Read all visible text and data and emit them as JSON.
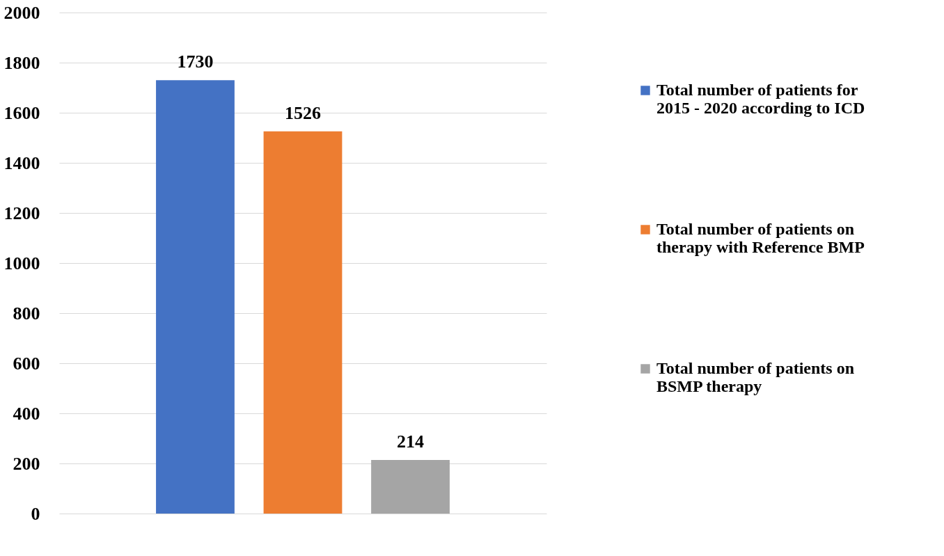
{
  "chart_data": {
    "type": "bar",
    "categories": [
      null
    ],
    "series": [
      {
        "name": "Total number of patients for 2015 - 2020 according to ICD",
        "color": "#4472c4",
        "values": [
          1730
        ]
      },
      {
        "name": "Total number of patients on therapy with Reference BMP",
        "color": "#ed7d31",
        "values": [
          1526
        ]
      },
      {
        "name": "Total number of patients on BSMP therapy",
        "color": "#a5a5a5",
        "values": [
          214
        ]
      }
    ],
    "ylim": [
      0,
      2000
    ],
    "yticks": [
      0,
      200,
      400,
      600,
      800,
      1000,
      1200,
      1400,
      1600,
      1800,
      2000
    ],
    "grid": "y",
    "legend": "right",
    "data_labels": true
  }
}
